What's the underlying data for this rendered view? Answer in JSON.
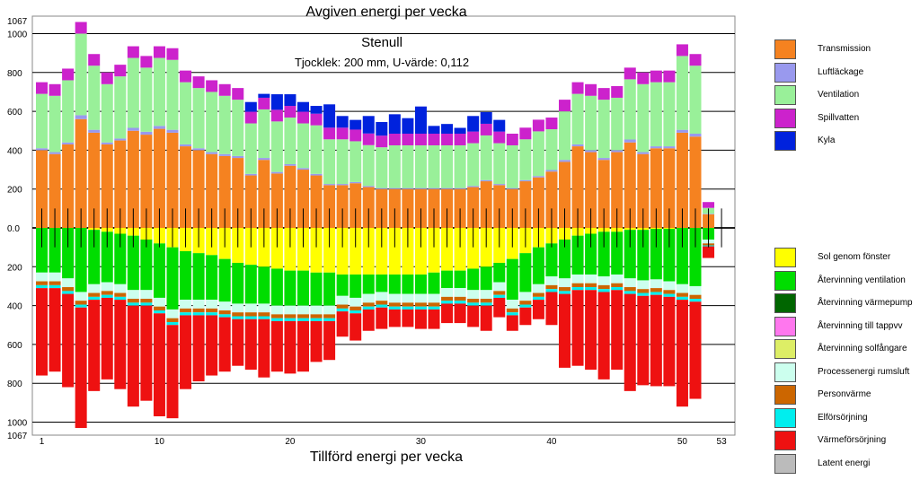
{
  "chart_data": {
    "type": "bar",
    "stacked": true,
    "title_top": "Avgiven energi per vecka",
    "title_bottom": "Tillförd energi per vecka",
    "name": "Stenull",
    "subtitle": "Tjocklek: 200 mm,  U-värde: 0,112",
    "y_tick_labels": [
      "1067",
      "1000",
      "800",
      "600",
      "400",
      "200",
      "0.0",
      "200",
      "400",
      "600",
      "800",
      "1000",
      "1067"
    ],
    "y_tick_values": [
      1067,
      1000,
      800,
      600,
      400,
      200,
      0,
      -200,
      -400,
      -600,
      -800,
      -1000,
      -1067
    ],
    "ylim": [
      -1067,
      1067
    ],
    "x_tick_labels": [
      "1",
      "10",
      "20",
      "30",
      "40",
      "50",
      "53"
    ],
    "x_tick_values": [
      1,
      10,
      20,
      30,
      40,
      50,
      53
    ],
    "grid": true,
    "weeks": [
      1,
      2,
      3,
      4,
      5,
      6,
      7,
      8,
      9,
      10,
      11,
      12,
      13,
      14,
      15,
      16,
      17,
      18,
      19,
      20,
      21,
      22,
      23,
      24,
      25,
      26,
      27,
      28,
      29,
      30,
      31,
      32,
      33,
      34,
      35,
      36,
      37,
      38,
      39,
      40,
      41,
      42,
      43,
      44,
      45,
      46,
      47,
      48,
      49,
      50,
      51,
      52,
      53
    ],
    "series_out": [
      {
        "name": "Transmission",
        "color": "#f58220",
        "values": [
          400,
          380,
          430,
          560,
          490,
          430,
          450,
          500,
          480,
          510,
          490,
          420,
          400,
          380,
          370,
          360,
          270,
          350,
          280,
          320,
          300,
          270,
          220,
          220,
          230,
          210,
          200,
          200,
          200,
          200,
          200,
          200,
          200,
          210,
          240,
          220,
          200,
          240,
          260,
          290,
          340,
          420,
          390,
          350,
          390,
          440,
          380,
          410,
          410,
          490,
          470,
          70,
          0
        ]
      },
      {
        "name": "Luftläckage",
        "color": "#9999ee",
        "values": [
          10,
          10,
          10,
          20,
          15,
          10,
          10,
          15,
          15,
          15,
          15,
          10,
          10,
          10,
          10,
          10,
          8,
          10,
          8,
          8,
          8,
          8,
          6,
          6,
          6,
          6,
          5,
          5,
          5,
          5,
          5,
          5,
          5,
          6,
          6,
          6,
          5,
          6,
          7,
          8,
          10,
          10,
          10,
          10,
          10,
          15,
          10,
          10,
          10,
          15,
          15,
          3,
          0
        ]
      },
      {
        "name": "Ventilation",
        "color": "#99f099",
        "values": [
          280,
          290,
          320,
          420,
          330,
          300,
          320,
          360,
          330,
          350,
          360,
          320,
          310,
          310,
          300,
          290,
          260,
          250,
          260,
          240,
          230,
          250,
          230,
          230,
          210,
          210,
          210,
          220,
          220,
          220,
          220,
          220,
          220,
          220,
          230,
          210,
          220,
          210,
          230,
          210,
          250,
          260,
          280,
          300,
          270,
          310,
          350,
          330,
          330,
          380,
          350,
          30,
          0
        ]
      },
      {
        "name": "Spillvatten",
        "color": "#cc22cc",
        "values": [
          60,
          60,
          60,
          60,
          60,
          60,
          60,
          60,
          60,
          60,
          60,
          60,
          60,
          60,
          60,
          60,
          60,
          60,
          60,
          60,
          60,
          60,
          60,
          60,
          60,
          60,
          60,
          60,
          60,
          60,
          60,
          60,
          60,
          60,
          60,
          60,
          60,
          60,
          60,
          60,
          60,
          60,
          60,
          60,
          60,
          60,
          60,
          60,
          60,
          60,
          60,
          30,
          0
        ]
      },
      {
        "name": "Kyla",
        "color": "#0022dd",
        "values": [
          0,
          0,
          0,
          0,
          0,
          0,
          0,
          0,
          0,
          0,
          0,
          0,
          0,
          0,
          0,
          0,
          50,
          20,
          80,
          60,
          50,
          40,
          120,
          60,
          50,
          90,
          70,
          100,
          80,
          140,
          40,
          50,
          30,
          80,
          60,
          60,
          0,
          0,
          0,
          0,
          0,
          0,
          0,
          0,
          0,
          0,
          0,
          0,
          0,
          0,
          0,
          0,
          0
        ]
      }
    ],
    "series_in": [
      {
        "name": "Sol genom fönster",
        "color": "#ffff00",
        "values": [
          0,
          0,
          0,
          0,
          10,
          20,
          30,
          40,
          60,
          80,
          100,
          120,
          130,
          140,
          160,
          180,
          190,
          200,
          210,
          220,
          220,
          230,
          230,
          240,
          240,
          240,
          240,
          240,
          240,
          240,
          230,
          220,
          220,
          210,
          200,
          180,
          160,
          130,
          100,
          80,
          60,
          40,
          30,
          20,
          20,
          10,
          10,
          5,
          5,
          0,
          0,
          0,
          0
        ]
      },
      {
        "name": "Återvinning ventilation",
        "color": "#00dd00",
        "values": [
          230,
          230,
          260,
          330,
          280,
          260,
          260,
          280,
          260,
          280,
          320,
          250,
          240,
          230,
          220,
          210,
          200,
          190,
          190,
          180,
          180,
          170,
          170,
          110,
          120,
          100,
          90,
          100,
          100,
          100,
          110,
          90,
          90,
          110,
          120,
          100,
          210,
          200,
          190,
          170,
          200,
          200,
          210,
          230,
          220,
          250,
          260,
          260,
          270,
          290,
          300,
          60,
          0
        ]
      },
      {
        "name": "Återvinning värmepump",
        "color": "#006600",
        "values": [
          0,
          0,
          0,
          0,
          0,
          0,
          0,
          0,
          0,
          0,
          0,
          0,
          0,
          0,
          0,
          0,
          0,
          0,
          0,
          0,
          0,
          0,
          0,
          0,
          0,
          0,
          0,
          0,
          0,
          0,
          0,
          0,
          0,
          0,
          0,
          0,
          0,
          0,
          0,
          0,
          0,
          0,
          0,
          0,
          0,
          0,
          0,
          0,
          0,
          0,
          0,
          0,
          0
        ]
      },
      {
        "name": "Återvinning till tappvv",
        "color": "#ff77ee",
        "values": [
          0,
          0,
          0,
          0,
          0,
          0,
          0,
          0,
          0,
          0,
          0,
          0,
          0,
          0,
          0,
          0,
          0,
          0,
          0,
          0,
          0,
          0,
          0,
          0,
          0,
          0,
          0,
          0,
          0,
          0,
          0,
          0,
          0,
          0,
          0,
          0,
          0,
          0,
          0,
          0,
          0,
          0,
          0,
          0,
          0,
          0,
          0,
          0,
          0,
          0,
          0,
          0,
          0
        ]
      },
      {
        "name": "Återvinning solfångare",
        "color": "#ddee66",
        "values": [
          0,
          0,
          0,
          0,
          0,
          0,
          0,
          0,
          0,
          0,
          0,
          0,
          0,
          0,
          0,
          0,
          0,
          0,
          0,
          0,
          0,
          0,
          0,
          0,
          0,
          0,
          0,
          0,
          0,
          0,
          0,
          0,
          0,
          0,
          0,
          0,
          0,
          0,
          0,
          0,
          0,
          0,
          0,
          0,
          0,
          0,
          0,
          0,
          0,
          0,
          0,
          0,
          0
        ]
      },
      {
        "name": "Processenergi rumsluft",
        "color": "#ccffee",
        "values": [
          45,
          45,
          45,
          45,
          45,
          45,
          45,
          45,
          45,
          45,
          45,
          45,
          45,
          45,
          45,
          45,
          45,
          45,
          45,
          45,
          45,
          45,
          45,
          45,
          45,
          45,
          45,
          45,
          45,
          45,
          45,
          45,
          45,
          45,
          45,
          45,
          45,
          45,
          45,
          45,
          45,
          45,
          45,
          45,
          45,
          45,
          45,
          45,
          45,
          45,
          45,
          20,
          0
        ]
      },
      {
        "name": "Personvärme",
        "color": "#cc6600",
        "values": [
          20,
          20,
          20,
          20,
          20,
          20,
          20,
          20,
          20,
          20,
          20,
          20,
          20,
          20,
          20,
          20,
          20,
          20,
          20,
          20,
          20,
          20,
          20,
          20,
          20,
          20,
          20,
          20,
          20,
          20,
          20,
          20,
          20,
          20,
          20,
          20,
          20,
          20,
          20,
          20,
          20,
          20,
          20,
          20,
          20,
          20,
          20,
          20,
          20,
          20,
          20,
          10,
          0
        ]
      },
      {
        "name": "Elförsörjning",
        "color": "#00eeee",
        "values": [
          15,
          15,
          15,
          15,
          15,
          15,
          15,
          15,
          15,
          15,
          15,
          15,
          15,
          15,
          15,
          15,
          15,
          15,
          15,
          15,
          15,
          15,
          15,
          15,
          15,
          15,
          15,
          15,
          15,
          15,
          15,
          15,
          15,
          15,
          15,
          15,
          15,
          15,
          15,
          15,
          15,
          15,
          15,
          15,
          15,
          15,
          15,
          15,
          15,
          15,
          15,
          5,
          0
        ]
      },
      {
        "name": "Värmeförsörjning",
        "color": "#ee1111",
        "values": [
          450,
          430,
          480,
          620,
          470,
          420,
          460,
          520,
          490,
          530,
          480,
          380,
          340,
          310,
          280,
          240,
          260,
          300,
          260,
          270,
          260,
          210,
          200,
          130,
          140,
          110,
          110,
          90,
          90,
          100,
          100,
          100,
          100,
          110,
          130,
          100,
          80,
          90,
          100,
          170,
          380,
          390,
          410,
          450,
          410,
          500,
          460,
          470,
          460,
          550,
          500,
          60,
          0
        ]
      },
      {
        "name": "Latent energi",
        "color": "#bbbbbb",
        "values": [
          0,
          0,
          0,
          0,
          0,
          0,
          0,
          0,
          0,
          0,
          0,
          0,
          0,
          0,
          0,
          0,
          0,
          0,
          0,
          0,
          0,
          0,
          0,
          0,
          0,
          0,
          0,
          0,
          0,
          0,
          0,
          0,
          0,
          0,
          0,
          0,
          0,
          0,
          0,
          0,
          0,
          0,
          0,
          0,
          0,
          0,
          0,
          0,
          0,
          0,
          0,
          0,
          0
        ]
      }
    ]
  }
}
